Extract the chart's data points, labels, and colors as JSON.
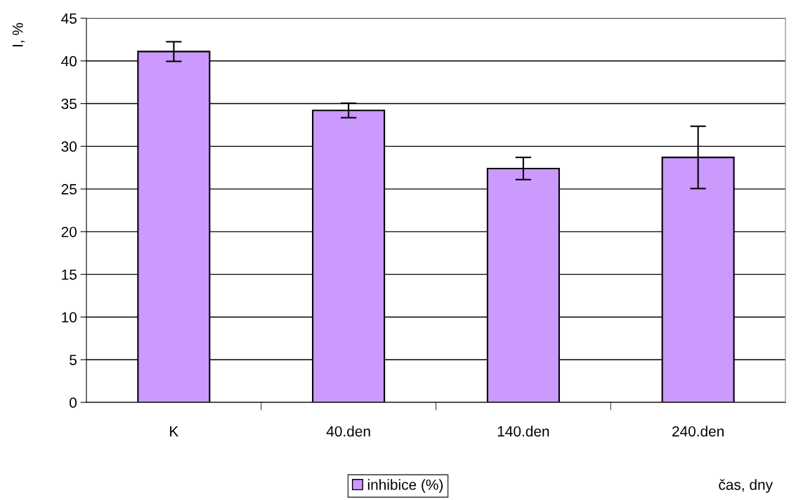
{
  "chart_data": {
    "type": "bar",
    "xlabel": "čas, dny",
    "ylabel": "I, %",
    "categories": [
      "K",
      "40.den",
      "140.den",
      "240.den"
    ],
    "series": [
      {
        "name": "inhibice (%)",
        "color": "#cc99ff",
        "values": [
          41.1,
          34.2,
          27.4,
          28.7
        ],
        "errors": [
          1.15,
          0.85,
          1.3,
          3.65
        ]
      }
    ],
    "ylim": [
      0,
      45
    ],
    "yticks": [
      0,
      5,
      10,
      15,
      20,
      25,
      30,
      35,
      40,
      45
    ],
    "grid": "y",
    "legend": "bottom"
  }
}
